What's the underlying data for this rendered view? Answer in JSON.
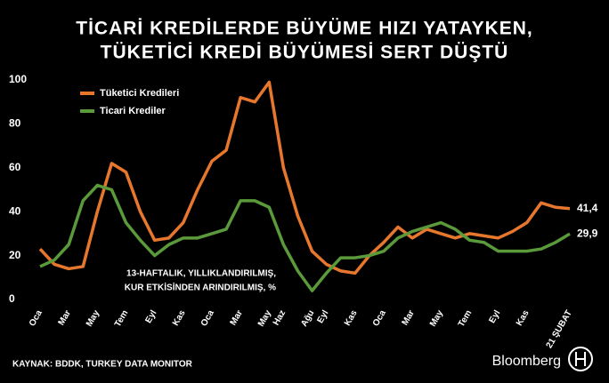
{
  "chart_data": {
    "type": "line",
    "title": [
      "TİCARİ KREDİLERDE BÜYÜME HIZI YATAYKEN,",
      "TÜKETİCİ KREDİ BÜYÜMESİ SERT DÜŞTÜ"
    ],
    "annotation": [
      "13-HAFTALIK, YILLIKLANDIRILMIŞ,",
      "KUR ETKİSİNDEN ARINDIRILMIŞ, %"
    ],
    "source": "KAYNAK: BDDK, TURKEY DATA MONITOR",
    "brand": "Bloomberg",
    "categories": [
      "Oca",
      null,
      "Mar",
      null,
      "May",
      null,
      "Tem",
      null,
      "Eyl",
      null,
      "Kas",
      null,
      "Oca",
      null,
      "Mar",
      null,
      "May",
      "Haz",
      null,
      "Ağu",
      "Eyl",
      null,
      "Kas",
      null,
      "Oca",
      null,
      "Mar",
      null,
      "May",
      null,
      "Tem",
      null,
      "Eyl",
      null,
      "Kas",
      null,
      null,
      "21 ŞUBAT"
    ],
    "series": [
      {
        "name": "Tüketici Kredileri",
        "color": "#e8772e",
        "values": [
          23,
          16,
          14,
          15,
          40,
          62,
          58,
          40,
          27,
          28,
          35,
          50,
          63,
          68,
          92,
          90,
          99,
          60,
          38,
          22,
          16,
          13,
          12,
          20,
          26,
          33,
          28,
          32,
          30,
          28,
          30,
          29,
          28,
          31,
          35,
          44,
          42,
          41.4
        ],
        "value_labels": [
          null,
          null,
          null,
          null,
          null,
          null,
          null,
          null,
          null,
          null,
          null,
          null,
          null,
          null,
          null,
          null,
          null,
          null,
          null,
          null,
          null,
          null,
          null,
          null,
          null,
          null,
          null,
          null,
          null,
          null,
          null,
          null,
          null,
          null,
          null,
          null,
          null,
          "41,4"
        ]
      },
      {
        "name": "Ticari Krediler",
        "color": "#5a9a3a",
        "values": [
          15,
          18,
          25,
          45,
          52,
          50,
          35,
          27,
          20,
          25,
          28,
          28,
          30,
          32,
          45,
          45,
          42,
          25,
          13,
          4,
          12,
          19,
          19,
          20,
          22,
          28,
          31,
          33,
          35,
          32,
          27,
          26,
          22,
          22,
          22,
          23,
          26,
          29.9
        ],
        "value_labels": [
          null,
          null,
          null,
          null,
          null,
          null,
          null,
          null,
          null,
          null,
          null,
          null,
          null,
          null,
          null,
          null,
          null,
          null,
          null,
          null,
          null,
          null,
          null,
          null,
          null,
          null,
          null,
          null,
          null,
          null,
          null,
          null,
          null,
          null,
          null,
          null,
          null,
          "29,9"
        ]
      }
    ],
    "ylim": [
      0,
      100
    ],
    "yticks": [
      0,
      20,
      40,
      60,
      80,
      100
    ],
    "grid": false,
    "legend": "top-left"
  }
}
